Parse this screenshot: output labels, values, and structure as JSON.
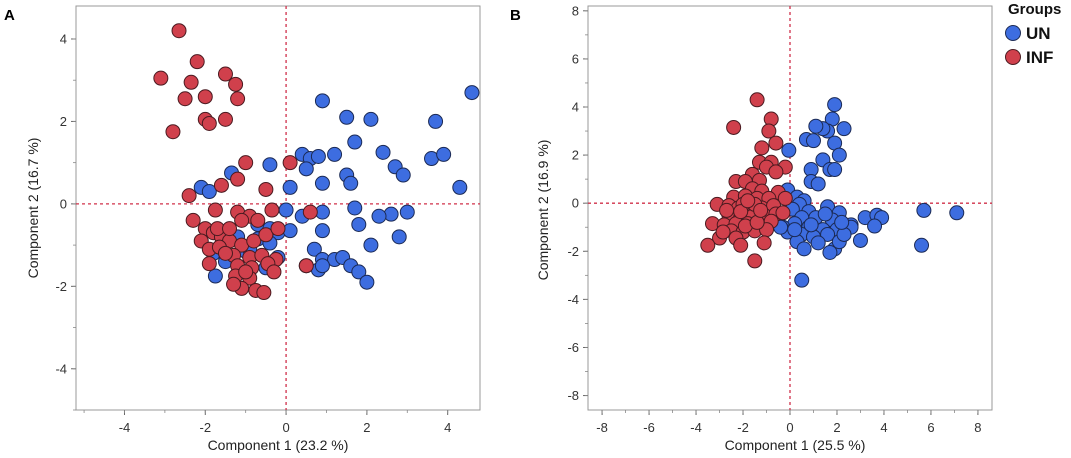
{
  "colors": {
    "UN": "#3d6de0",
    "INF": "#d0404c",
    "ref_line": "#d0304a",
    "frame": "#999999"
  },
  "legend": {
    "title": "Groups",
    "items": [
      {
        "label": "UN",
        "color": "#3d6de0"
      },
      {
        "label": "INF",
        "color": "#d0404c"
      }
    ]
  },
  "chart_data": [
    {
      "panel": "A",
      "type": "scatter",
      "xlabel": "Component 1  (23.2 %)",
      "ylabel": "Component 2  (16.7 %)",
      "xlim": [
        -5.2,
        4.8
      ],
      "ylim": [
        -5.0,
        4.8
      ],
      "xticks": [
        "-4",
        "-2",
        "0",
        "2",
        "4"
      ],
      "yticks": [
        "-4",
        "-2",
        "0",
        "2",
        "4"
      ],
      "reference_lines": {
        "x": 0,
        "y": 0
      },
      "series": [
        {
          "name": "UN",
          "points": [
            [
              4.6,
              2.7
            ],
            [
              0.9,
              2.5
            ],
            [
              1.5,
              2.1
            ],
            [
              2.1,
              2.05
            ],
            [
              3.7,
              2.0
            ],
            [
              1.7,
              1.5
            ],
            [
              2.4,
              1.25
            ],
            [
              0.4,
              1.2
            ],
            [
              0.6,
              1.1
            ],
            [
              0.8,
              1.15
            ],
            [
              1.2,
              1.2
            ],
            [
              3.6,
              1.1
            ],
            [
              3.9,
              1.2
            ],
            [
              2.7,
              0.9
            ],
            [
              -0.4,
              0.95
            ],
            [
              0.5,
              0.85
            ],
            [
              1.5,
              0.7
            ],
            [
              2.9,
              0.7
            ],
            [
              4.3,
              0.4
            ],
            [
              1.6,
              0.5
            ],
            [
              -2.1,
              0.4
            ],
            [
              -1.35,
              0.75
            ],
            [
              -1.9,
              0.3
            ],
            [
              0.1,
              0.4
            ],
            [
              0.9,
              0.5
            ],
            [
              1.7,
              -0.1
            ],
            [
              2.6,
              -0.25
            ],
            [
              3.0,
              -0.2
            ],
            [
              2.3,
              -0.3
            ],
            [
              0.0,
              -0.15
            ],
            [
              0.4,
              -0.3
            ],
            [
              0.9,
              -0.2
            ],
            [
              1.8,
              -0.5
            ],
            [
              -0.7,
              -0.5
            ],
            [
              -0.3,
              -0.7
            ],
            [
              -0.2,
              -0.7
            ],
            [
              -0.7,
              -0.85
            ],
            [
              -0.4,
              -0.95
            ],
            [
              0.1,
              -0.65
            ],
            [
              -1.3,
              -0.85
            ],
            [
              0.9,
              -0.65
            ],
            [
              0.7,
              -1.1
            ],
            [
              0.9,
              -1.35
            ],
            [
              1.2,
              -1.35
            ],
            [
              2.1,
              -1.0
            ],
            [
              2.8,
              -0.8
            ],
            [
              1.4,
              -1.3
            ],
            [
              0.5,
              -1.5
            ],
            [
              0.8,
              -1.6
            ],
            [
              0.9,
              -1.5
            ],
            [
              1.6,
              -1.5
            ],
            [
              1.8,
              -1.65
            ],
            [
              2.0,
              -1.9
            ],
            [
              -1.0,
              -1.15
            ],
            [
              -1.5,
              -1.4
            ],
            [
              -1.8,
              -1.2
            ],
            [
              -1.75,
              -1.75
            ],
            [
              -0.5,
              -1.55
            ],
            [
              -1.2,
              -0.8
            ],
            [
              -0.4,
              -0.6
            ],
            [
              -0.2,
              -1.3
            ],
            [
              -0.9,
              -1.1
            ]
          ]
        },
        {
          "name": "INF",
          "points": [
            [
              -2.65,
              4.2
            ],
            [
              -3.1,
              3.05
            ],
            [
              -2.2,
              3.45
            ],
            [
              -2.35,
              2.95
            ],
            [
              -1.5,
              3.15
            ],
            [
              -1.25,
              2.9
            ],
            [
              -2.5,
              2.55
            ],
            [
              -2.0,
              2.6
            ],
            [
              -1.2,
              2.55
            ],
            [
              -1.5,
              2.05
            ],
            [
              -2.0,
              2.05
            ],
            [
              -1.9,
              1.95
            ],
            [
              -2.8,
              1.75
            ],
            [
              -1.0,
              1.0
            ],
            [
              0.1,
              1.0
            ],
            [
              -1.2,
              0.6
            ],
            [
              -1.6,
              0.45
            ],
            [
              -0.5,
              0.35
            ],
            [
              -2.4,
              0.2
            ],
            [
              -1.75,
              -0.15
            ],
            [
              -1.2,
              -0.2
            ],
            [
              -0.9,
              -0.3
            ],
            [
              -0.35,
              -0.15
            ],
            [
              0.6,
              -0.2
            ],
            [
              -2.3,
              -0.4
            ],
            [
              -2.0,
              -0.6
            ],
            [
              -1.8,
              -0.7
            ],
            [
              -1.6,
              -0.8
            ],
            [
              -1.4,
              -0.9
            ],
            [
              -1.1,
              -1.0
            ],
            [
              -0.8,
              -0.9
            ],
            [
              -0.5,
              -0.75
            ],
            [
              -0.2,
              -0.6
            ],
            [
              -2.1,
              -0.9
            ],
            [
              -1.9,
              -1.1
            ],
            [
              -1.65,
              -1.05
            ],
            [
              -1.3,
              -1.25
            ],
            [
              -0.9,
              -1.3
            ],
            [
              -0.6,
              -1.25
            ],
            [
              -0.25,
              -1.35
            ],
            [
              -1.5,
              -1.2
            ],
            [
              -1.9,
              -1.45
            ],
            [
              -1.2,
              -1.5
            ],
            [
              -0.85,
              -1.55
            ],
            [
              -0.45,
              -1.45
            ],
            [
              -1.25,
              -1.75
            ],
            [
              -0.9,
              -1.8
            ],
            [
              -0.75,
              -2.1
            ],
            [
              -1.1,
              -2.05
            ],
            [
              -0.55,
              -2.15
            ],
            [
              -1.3,
              -1.95
            ],
            [
              -0.3,
              -1.65
            ],
            [
              -1.0,
              -1.65
            ],
            [
              0.5,
              -1.5
            ],
            [
              -1.7,
              -0.6
            ],
            [
              -1.4,
              -0.6
            ],
            [
              -0.7,
              -0.4
            ],
            [
              -1.1,
              -0.4
            ]
          ]
        }
      ]
    },
    {
      "panel": "B",
      "type": "scatter",
      "xlabel": "Component 1  (25.5 %)",
      "ylabel": "Component 2  (16.9 %)",
      "xlim": [
        -8.6,
        8.6
      ],
      "ylim": [
        -8.6,
        8.2
      ],
      "xticks": [
        "-8",
        "-6",
        "-4",
        "-2",
        "0",
        "2",
        "4",
        "6",
        "8"
      ],
      "yticks": [
        "-8",
        "-6",
        "-4",
        "-2",
        "0",
        "2",
        "4",
        "6",
        "8"
      ],
      "reference_lines": {
        "x": 0,
        "y": 0
      },
      "series": [
        {
          "name": "UN",
          "points": [
            [
              1.9,
              4.1
            ],
            [
              1.8,
              3.5
            ],
            [
              1.6,
              3.0
            ],
            [
              1.4,
              3.1
            ],
            [
              1.1,
              3.2
            ],
            [
              2.3,
              3.1
            ],
            [
              1.9,
              2.5
            ],
            [
              0.7,
              2.65
            ],
            [
              1.0,
              2.6
            ],
            [
              2.1,
              2.0
            ],
            [
              -0.05,
              2.2
            ],
            [
              1.4,
              1.8
            ],
            [
              0.9,
              1.4
            ],
            [
              1.7,
              1.4
            ],
            [
              1.9,
              1.4
            ],
            [
              0.9,
              0.9
            ],
            [
              1.2,
              0.8
            ],
            [
              -0.1,
              0.55
            ],
            [
              0.3,
              0.25
            ],
            [
              0.6,
              0.1
            ],
            [
              0.4,
              -0.05
            ],
            [
              0.1,
              -0.25
            ],
            [
              0.8,
              -0.35
            ],
            [
              1.6,
              -0.15
            ],
            [
              2.1,
              -0.4
            ],
            [
              3.2,
              -0.6
            ],
            [
              3.7,
              -0.5
            ],
            [
              3.9,
              -0.6
            ],
            [
              3.6,
              -0.95
            ],
            [
              5.7,
              -0.3
            ],
            [
              7.1,
              -0.4
            ],
            [
              0.5,
              -0.6
            ],
            [
              1.1,
              -0.6
            ],
            [
              1.8,
              -0.7
            ],
            [
              2.6,
              -0.9
            ],
            [
              0.2,
              -0.85
            ],
            [
              0.8,
              -1.0
            ],
            [
              1.4,
              -1.1
            ],
            [
              2.0,
              -1.1
            ],
            [
              2.6,
              -1.0
            ],
            [
              -0.3,
              -1.0
            ],
            [
              -0.1,
              -1.2
            ],
            [
              0.5,
              -1.3
            ],
            [
              1.0,
              -1.4
            ],
            [
              1.6,
              -1.3
            ],
            [
              3.0,
              -1.55
            ],
            [
              0.3,
              -1.6
            ],
            [
              1.2,
              -1.65
            ],
            [
              1.9,
              -1.9
            ],
            [
              2.1,
              -1.6
            ],
            [
              1.7,
              -2.05
            ],
            [
              0.6,
              -1.9
            ],
            [
              5.6,
              -1.75
            ],
            [
              0.5,
              -3.2
            ],
            [
              -0.4,
              -1.0
            ],
            [
              0.2,
              -1.1
            ],
            [
              1.5,
              -0.45
            ],
            [
              2.3,
              -1.3
            ],
            [
              0.9,
              -0.9
            ],
            [
              2.2,
              -0.8
            ],
            [
              -0.7,
              -0.5
            ]
          ]
        },
        {
          "name": "INF",
          "points": [
            [
              -1.4,
              4.3
            ],
            [
              -2.4,
              3.15
            ],
            [
              -0.8,
              3.5
            ],
            [
              -0.9,
              3.0
            ],
            [
              -0.6,
              2.5
            ],
            [
              -1.2,
              2.3
            ],
            [
              -1.3,
              1.7
            ],
            [
              -0.8,
              1.7
            ],
            [
              -1.0,
              1.5
            ],
            [
              -0.2,
              1.5
            ],
            [
              -0.6,
              1.3
            ],
            [
              -1.6,
              1.2
            ],
            [
              -2.3,
              0.9
            ],
            [
              -1.9,
              0.9
            ],
            [
              -1.3,
              0.95
            ],
            [
              -1.6,
              0.6
            ],
            [
              -1.2,
              0.5
            ],
            [
              -0.5,
              0.45
            ],
            [
              -2.4,
              0.25
            ],
            [
              -1.9,
              0.3
            ],
            [
              -1.4,
              0.2
            ],
            [
              -0.9,
              0.2
            ],
            [
              -0.2,
              0.2
            ],
            [
              -3.1,
              -0.05
            ],
            [
              -2.6,
              -0.1
            ],
            [
              -2.2,
              -0.2
            ],
            [
              -1.7,
              -0.3
            ],
            [
              -1.2,
              -0.2
            ],
            [
              -0.7,
              -0.1
            ],
            [
              -2.6,
              -0.5
            ],
            [
              -2.1,
              -0.6
            ],
            [
              -1.6,
              -0.55
            ],
            [
              -1.1,
              -0.5
            ],
            [
              -0.6,
              -0.45
            ],
            [
              -3.3,
              -0.85
            ],
            [
              -2.8,
              -0.9
            ],
            [
              -2.3,
              -0.85
            ],
            [
              -1.8,
              -0.85
            ],
            [
              -1.3,
              -0.9
            ],
            [
              -0.8,
              -0.75
            ],
            [
              -2.5,
              -1.15
            ],
            [
              -2.0,
              -1.2
            ],
            [
              -1.5,
              -1.15
            ],
            [
              -1.0,
              -1.1
            ],
            [
              -3.0,
              -1.45
            ],
            [
              -2.3,
              -1.45
            ],
            [
              -3.5,
              -1.75
            ],
            [
              -2.1,
              -1.75
            ],
            [
              -1.1,
              -1.65
            ],
            [
              -1.5,
              -2.4
            ],
            [
              -2.85,
              -1.2
            ],
            [
              -1.9,
              -0.95
            ],
            [
              -1.4,
              -0.8
            ],
            [
              -2.7,
              -0.3
            ],
            [
              -2.0,
              -0.05
            ],
            [
              -1.5,
              -0.05
            ],
            [
              -2.1,
              -0.35
            ],
            [
              -1.8,
              0.1
            ],
            [
              -0.3,
              -0.4
            ],
            [
              -1.25,
              -0.3
            ]
          ]
        }
      ]
    }
  ],
  "panels": {
    "A": {
      "letter": "A",
      "xlabel": "Component 1  (23.2 %)",
      "ylabel": "Component 2  (16.7 %)",
      "xticks": [
        "-4",
        "-2",
        "0",
        "2",
        "4"
      ],
      "yticks": [
        "-4",
        "-2",
        "0",
        "2",
        "4"
      ]
    },
    "B": {
      "letter": "B",
      "xlabel": "Component 1  (25.5 %)",
      "ylabel": "Component 2  (16.9 %)",
      "xticks": [
        "-8",
        "-6",
        "-4",
        "-2",
        "0",
        "2",
        "4",
        "6",
        "8"
      ],
      "yticks": [
        "-8",
        "-6",
        "-4",
        "-2",
        "0",
        "2",
        "4",
        "6",
        "8"
      ]
    }
  }
}
